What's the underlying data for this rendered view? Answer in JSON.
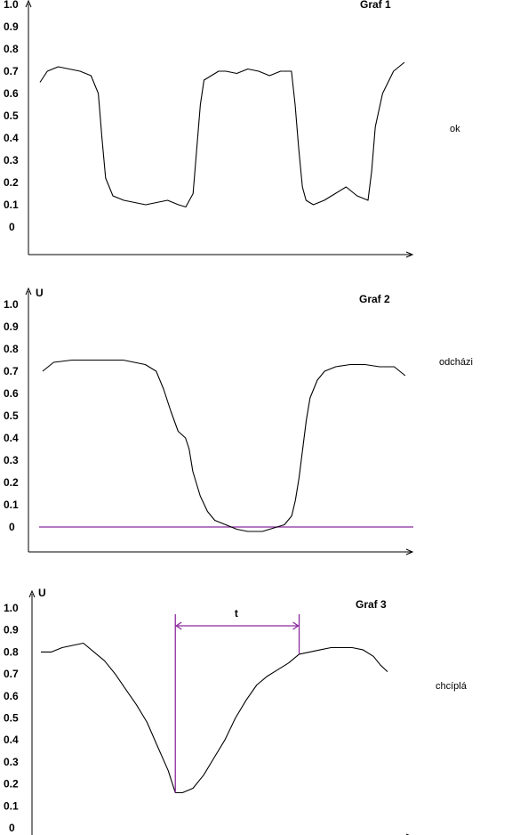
{
  "chart_data": [
    {
      "type": "line",
      "title": "Graf 1",
      "ylabel": "",
      "xlabel": "",
      "annotation": "ok",
      "yticks": [
        "1.0",
        "0.9",
        "0.8",
        "0.7",
        "0.6",
        "0.5",
        "0.4",
        "0.3",
        "0.2",
        "0.1",
        "0"
      ],
      "ylim": [
        0,
        1.0
      ],
      "xlim": [
        0,
        100
      ],
      "grid": false,
      "series": [
        {
          "color": "#000000",
          "x": [
            0,
            2,
            5,
            8,
            11,
            14,
            16,
            17,
            18,
            20,
            23,
            26,
            29,
            32,
            35,
            38,
            40,
            42,
            43,
            44,
            45,
            47,
            49,
            51,
            54,
            57,
            60,
            63,
            66,
            69,
            70,
            71,
            72,
            73,
            75,
            78,
            81,
            84,
            87,
            90,
            91,
            92,
            94,
            97,
            100
          ],
          "y": [
            0.65,
            0.7,
            0.72,
            0.71,
            0.7,
            0.68,
            0.6,
            0.4,
            0.22,
            0.14,
            0.12,
            0.11,
            0.1,
            0.11,
            0.12,
            0.1,
            0.09,
            0.15,
            0.35,
            0.55,
            0.66,
            0.68,
            0.7,
            0.7,
            0.69,
            0.71,
            0.7,
            0.68,
            0.7,
            0.7,
            0.55,
            0.35,
            0.18,
            0.12,
            0.1,
            0.12,
            0.15,
            0.18,
            0.14,
            0.12,
            0.25,
            0.45,
            0.6,
            0.7,
            0.74
          ]
        }
      ]
    },
    {
      "type": "line",
      "title": "Graf 2",
      "ylabel": "U",
      "xlabel": "",
      "annotation": "odcházi",
      "yticks": [
        "1.0",
        "0.9",
        "0.8",
        "0.7",
        "0.6",
        "0.5",
        "0.4",
        "0.3",
        "0.2",
        "0.1",
        "0"
      ],
      "ylim": [
        0,
        1.0
      ],
      "xlim": [
        0,
        100
      ],
      "grid": false,
      "hline": {
        "y": 0,
        "color": "#8b2a9e"
      },
      "series": [
        {
          "color": "#000000",
          "x": [
            0,
            3,
            8,
            15,
            22,
            28,
            31,
            33,
            35,
            37,
            39,
            40,
            41,
            43,
            45,
            47,
            50,
            53,
            56,
            58,
            60,
            62,
            64,
            66,
            68,
            69,
            70,
            71,
            72,
            73,
            75,
            77,
            80,
            84,
            88,
            92,
            96,
            99
          ],
          "y": [
            0.7,
            0.74,
            0.75,
            0.75,
            0.75,
            0.73,
            0.7,
            0.62,
            0.52,
            0.43,
            0.4,
            0.35,
            0.25,
            0.14,
            0.07,
            0.03,
            0.01,
            -0.01,
            -0.02,
            -0.02,
            -0.02,
            -0.01,
            0.0,
            0.01,
            0.05,
            0.12,
            0.22,
            0.35,
            0.48,
            0.58,
            0.66,
            0.7,
            0.72,
            0.73,
            0.73,
            0.72,
            0.72,
            0.68
          ]
        }
      ]
    },
    {
      "type": "line",
      "title": "Graf 3",
      "ylabel": "U",
      "xlabel": "",
      "annotation": "chcíplá",
      "yticks": [
        "1.0",
        "0.9",
        "0.8",
        "0.7",
        "0.6",
        "0.5",
        "0.4",
        "0.3",
        "0.2",
        "0.1",
        "0"
      ],
      "ylim": [
        0,
        1.0
      ],
      "xlim": [
        0,
        100
      ],
      "grid": false,
      "measure": {
        "label": "t",
        "x1": 38,
        "x2": 73,
        "color": "#8b2a9e"
      },
      "series": [
        {
          "color": "#000000",
          "x": [
            0,
            3,
            6,
            9,
            12,
            15,
            18,
            21,
            24,
            27,
            30,
            33,
            36,
            38,
            40,
            43,
            46,
            49,
            52,
            55,
            58,
            61,
            64,
            67,
            70,
            73,
            76,
            79,
            82,
            85,
            88,
            91,
            94,
            96,
            98
          ],
          "y": [
            0.8,
            0.8,
            0.82,
            0.83,
            0.84,
            0.8,
            0.76,
            0.7,
            0.63,
            0.56,
            0.48,
            0.37,
            0.26,
            0.16,
            0.16,
            0.18,
            0.24,
            0.32,
            0.4,
            0.5,
            0.58,
            0.65,
            0.69,
            0.72,
            0.75,
            0.79,
            0.8,
            0.81,
            0.82,
            0.82,
            0.82,
            0.81,
            0.78,
            0.74,
            0.71
          ]
        }
      ]
    }
  ]
}
